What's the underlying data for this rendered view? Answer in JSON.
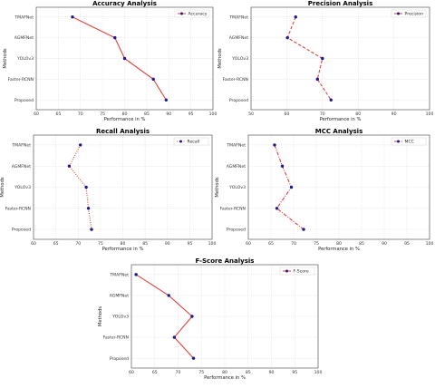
{
  "chart_data": [
    {
      "type": "line",
      "title": "Accuracy Analysis",
      "xlabel": "Performance in %",
      "ylabel": "Methods",
      "categories": [
        "TMAFNet",
        "AGMFNet",
        "YOLOv3",
        "Faster-RCNN",
        "Proposed"
      ],
      "xlim": [
        60,
        100
      ],
      "xticks": [
        60,
        65,
        70,
        75,
        80,
        85,
        90,
        95,
        100
      ],
      "series": [
        {
          "name": "Accuracy",
          "values": [
            68.2,
            77.8,
            80.0,
            86.5,
            89.4
          ]
        }
      ],
      "line_style": "solid",
      "legend_position": "top-right",
      "grid": true
    },
    {
      "type": "line",
      "title": "Precision Analysis",
      "xlabel": "Performance in %",
      "ylabel": "Methods",
      "categories": [
        "TMAFNet",
        "AGMFNet",
        "YOLOv3",
        "Faster-RCNN",
        "Proposed"
      ],
      "xlim": [
        50,
        100
      ],
      "xticks": [
        50,
        60,
        70,
        80,
        90,
        100
      ],
      "series": [
        {
          "name": "Precision",
          "values": [
            62.5,
            60.2,
            70.0,
            68.6,
            72.4
          ]
        }
      ],
      "line_style": "dashed",
      "legend_position": "top-right",
      "grid": true
    },
    {
      "type": "line",
      "title": "Recall Analysis",
      "xlabel": "Performance in %",
      "ylabel": "Methods",
      "categories": [
        "TMAFNet",
        "AGMFNet",
        "YOLOv3",
        "Faster-RCNN",
        "Proposed"
      ],
      "xlim": [
        60,
        100
      ],
      "xticks": [
        60,
        65,
        70,
        75,
        80,
        85,
        90,
        95,
        100
      ],
      "series": [
        {
          "name": "Recall",
          "values": [
            70.5,
            68.0,
            71.8,
            72.3,
            73.0
          ]
        }
      ],
      "line_style": "dotted",
      "legend_position": "top-right",
      "grid": true
    },
    {
      "type": "line",
      "title": "MCC Analysis",
      "xlabel": "Performance in %",
      "ylabel": "Methods",
      "categories": [
        "TMAFNet",
        "AGMFNet",
        "YOLOv3",
        "Faster-RCNN",
        "Proposed"
      ],
      "xlim": [
        60,
        100
      ],
      "xticks": [
        60,
        65,
        70,
        75,
        80,
        85,
        90,
        95,
        100
      ],
      "series": [
        {
          "name": "MCC",
          "values": [
            65.8,
            67.5,
            69.5,
            66.3,
            72.2
          ]
        }
      ],
      "line_style": "dashdot",
      "legend_position": "top-right",
      "grid": true
    },
    {
      "type": "line",
      "title": "F-Score Analysis",
      "xlabel": "Performance in %",
      "ylabel": "Methods",
      "categories": [
        "TMAFNet",
        "AGMFNet",
        "YOLOv3",
        "Faster-RCNN",
        "Proposed"
      ],
      "xlim": [
        60,
        100
      ],
      "xticks": [
        60,
        65,
        70,
        75,
        80,
        85,
        90,
        95,
        100
      ],
      "series": [
        {
          "name": "F-Score",
          "values": [
            61.0,
            68.0,
            73.0,
            69.2,
            73.3
          ]
        }
      ],
      "line_style": "solid",
      "legend_position": "top-right",
      "grid": true
    }
  ],
  "colors": {
    "line": "#e0423a",
    "marker": "#1f1a8c",
    "grid": "#cfcfcf",
    "frame": "#444444"
  }
}
